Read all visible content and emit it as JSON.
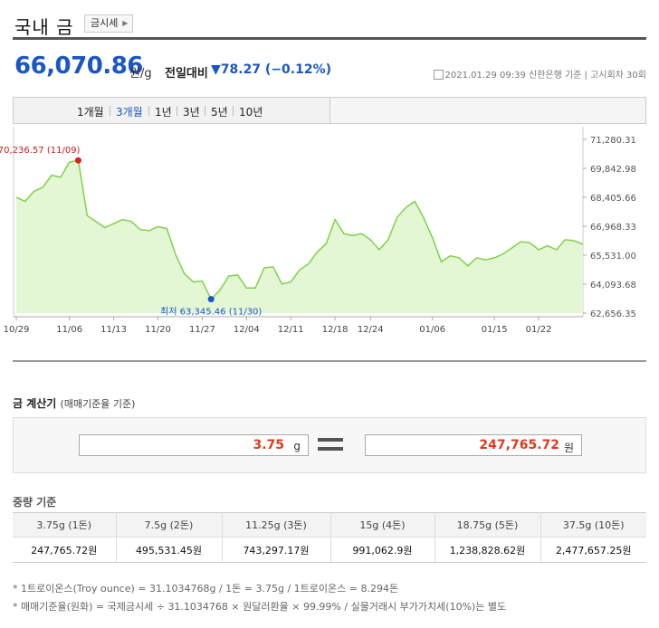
{
  "header": {
    "title": "국내 금",
    "sub_button": "금시세"
  },
  "price": {
    "value": "66,070.86",
    "unit": "원/g",
    "change_label": "전일대비",
    "change": "▼78.27 (−0.12%)",
    "meta": "2021.01.29 09:39  신한은행 기준  |  고시회차 30회"
  },
  "tabs": [
    "1개월",
    "3개월",
    "1년",
    "3년",
    "5년",
    "10년"
  ],
  "active_tab": "3개월",
  "chart_data": {
    "type": "area",
    "x": [
      "10/29",
      "10/30",
      "11/02",
      "11/03",
      "11/04",
      "11/05",
      "11/06",
      "11/09",
      "11/10",
      "11/11",
      "11/12",
      "11/13",
      "11/16",
      "11/17",
      "11/18",
      "11/19",
      "11/20",
      "11/23",
      "11/24",
      "11/25",
      "11/26",
      "11/27",
      "11/30",
      "12/01",
      "12/02",
      "12/03",
      "12/04",
      "12/07",
      "12/08",
      "12/09",
      "12/10",
      "12/11",
      "12/14",
      "12/15",
      "12/16",
      "12/17",
      "12/18",
      "12/21",
      "12/22",
      "12/23",
      "12/24",
      "12/28",
      "12/29",
      "12/30",
      "12/31",
      "01/04",
      "01/05",
      "01/06",
      "01/07",
      "01/08",
      "01/11",
      "01/12",
      "01/13",
      "01/14",
      "01/15",
      "01/18",
      "01/19",
      "01/20",
      "01/21",
      "01/22",
      "01/25",
      "01/26",
      "01/27",
      "01/28",
      "01/29"
    ],
    "values": [
      68400,
      68200,
      68700,
      68900,
      69500,
      69400,
      70150,
      70236.57,
      67500,
      67200,
      66900,
      67100,
      67300,
      67200,
      66800,
      66750,
      66950,
      66850,
      65550,
      64600,
      64200,
      64250,
      63345.46,
      63800,
      64500,
      64550,
      63900,
      63900,
      64900,
      64950,
      64100,
      64200,
      64800,
      65100,
      65700,
      66100,
      67300,
      66600,
      66500,
      66600,
      66300,
      65800,
      66300,
      67400,
      67900,
      68200,
      67400,
      66400,
      65200,
      65500,
      65400,
      65000,
      65400,
      65300,
      65400,
      65600,
      65900,
      66200,
      66150,
      65800,
      66000,
      65800,
      66300,
      66250,
      66070.86
    ],
    "x_ticks": [
      "10/29",
      "11/06",
      "11/13",
      "11/20",
      "11/27",
      "12/04",
      "12/11",
      "12/18",
      "12/24",
      "01/06",
      "01/15",
      "01/22"
    ],
    "y_ticks": [
      "71,280.31",
      "69,842.98",
      "68,405.66",
      "66,968.33",
      "65,531.00",
      "64,093.68",
      "62,656.35"
    ],
    "ylim": [
      62656.35,
      71280.31
    ],
    "max_label": "최고 70,236.57 (11/09)",
    "min_label": "최저 63,345.46 (11/30)",
    "line_color": "#7fd14a",
    "fill_color": "#e4f7d4",
    "max_color": "#e02020",
    "min_color": "#1a56c6"
  },
  "calculator": {
    "title": "금 계산기",
    "subtitle": "(매매기준율 기준)",
    "input_value": "3.75",
    "input_unit": "g",
    "result_value": "247,765.72",
    "result_unit": "원"
  },
  "weight": {
    "title": "중량 기준",
    "headers": [
      "3.75g (1돈)",
      "7.5g (2돈)",
      "11.25g (3돈)",
      "15g (4돈)",
      "18.75g (5돈)",
      "37.5g (10돈)"
    ],
    "values": [
      "247,765.72원",
      "495,531.45원",
      "743,297.17원",
      "991,062.9원",
      "1,238,828.62원",
      "2,477,657.25원"
    ]
  },
  "notes": [
    "* 1트로이온스(Troy ounce) = 31.1034768g / 1돈 = 3.75g / 1트로이온스 = 8.294돈",
    "* 매매기준율(원화) = 국제금시세 ÷ 31.1034768 × 원달러환율 × 99.99% / 실물거래시 부가가치세(10%)는 별도"
  ]
}
